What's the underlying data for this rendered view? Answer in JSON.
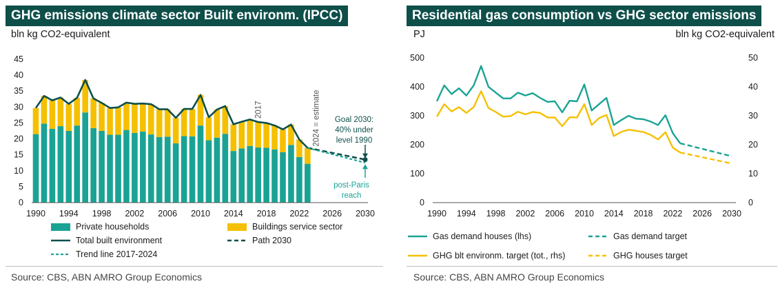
{
  "colors": {
    "teal": "#1aa394",
    "yellow": "#f5c000",
    "dark": "#0e4f4a",
    "title_bg": "#0e4f4a"
  },
  "left": {
    "title": "GHG emissions climate sector Built environm. (IPCC)",
    "unit": "bln kg CO2-equivalent",
    "source": "Source: CBS, ABN AMRO Group Economics",
    "annotations": {
      "year2017": "2017",
      "estimate": "2024 = estimate",
      "goal": [
        "Goal 2030:",
        "40% under",
        "level 1990"
      ],
      "paris": [
        "post-Paris",
        "reach"
      ]
    }
  },
  "right": {
    "title": "Residential gas consumption vs GHG sector emissions",
    "unit_left": "PJ",
    "unit_right": "bln kg CO2-equivalent",
    "source": "Source: CBS, ABN AMRO Group Economics"
  },
  "chart_data": [
    {
      "type": "bar",
      "title": "GHG emissions climate sector Built environm. (IPCC)",
      "ylabel": "bln kg CO2-equivalent",
      "xlim": [
        1990,
        2030
      ],
      "ylim": [
        0,
        45
      ],
      "yticks": [
        0,
        5,
        10,
        15,
        20,
        25,
        30,
        35,
        40,
        45
      ],
      "xticks": [
        1990,
        1994,
        1998,
        2002,
        2006,
        2010,
        2014,
        2018,
        2022,
        2026,
        2030
      ],
      "grid": false,
      "legend_position": "bottom",
      "categories": [
        1990,
        1991,
        1992,
        1993,
        1994,
        1995,
        1996,
        1997,
        1998,
        1999,
        2000,
        2001,
        2002,
        2003,
        2004,
        2005,
        2006,
        2007,
        2008,
        2009,
        2010,
        2011,
        2012,
        2013,
        2014,
        2015,
        2016,
        2017,
        2018,
        2019,
        2020,
        2021,
        2022,
        2023
      ],
      "series": [
        {
          "name": "Private households",
          "kind": "stacked-bar",
          "color": "#1aa394",
          "values": [
            21.5,
            24.8,
            23.2,
            24.0,
            22.5,
            24.2,
            28.3,
            23.4,
            22.5,
            21.3,
            21.3,
            22.8,
            21.9,
            22.3,
            21.4,
            20.6,
            20.7,
            18.6,
            20.9,
            20.8,
            24.2,
            19.6,
            20.4,
            21.6,
            16.2,
            17.0,
            17.8,
            17.3,
            17.2,
            16.7,
            15.8,
            18.1,
            14.3,
            12.2
          ]
        },
        {
          "name": "Buildings service sector",
          "kind": "stacked-bar",
          "color": "#f5c000",
          "values": [
            8.2,
            8.7,
            8.9,
            9.0,
            8.5,
            8.7,
            10.2,
            9.3,
            8.8,
            8.4,
            8.6,
            8.6,
            9.1,
            8.8,
            9.5,
            8.7,
            8.6,
            8.0,
            8.5,
            8.6,
            9.6,
            7.2,
            8.8,
            8.7,
            8.4,
            8.4,
            8.3,
            8.0,
            7.8,
            7.5,
            7.2,
            6.4,
            5.5,
            5.0
          ]
        },
        {
          "name": "Total built environment",
          "kind": "line",
          "color": "#0e4f4a",
          "x": [
            1990,
            1991,
            1992,
            1993,
            1994,
            1995,
            1996,
            1997,
            1998,
            1999,
            2000,
            2001,
            2002,
            2003,
            2004,
            2005,
            2006,
            2007,
            2008,
            2009,
            2010,
            2011,
            2012,
            2013,
            2014,
            2015,
            2016,
            2017,
            2018,
            2019,
            2020,
            2021,
            2022,
            2023
          ],
          "values": [
            29.7,
            33.5,
            32.1,
            33.0,
            31.0,
            32.9,
            38.5,
            32.7,
            31.3,
            29.7,
            29.9,
            31.4,
            31.0,
            31.1,
            30.9,
            29.3,
            29.3,
            26.6,
            29.4,
            29.4,
            33.8,
            26.8,
            29.2,
            30.3,
            24.6,
            25.4,
            26.1,
            25.3,
            25.0,
            24.2,
            23.0,
            24.5,
            19.8,
            17.2
          ]
        },
        {
          "name": "Path 2030",
          "kind": "dashed-line",
          "color": "#0e4f4a",
          "x": [
            2023,
            2030
          ],
          "values": [
            17.2,
            13.5
          ]
        },
        {
          "name": "Trend line 2017-2024",
          "kind": "dashed-line",
          "color": "#1aa394",
          "x": [
            2023,
            2030
          ],
          "values": [
            17.2,
            12.5
          ]
        }
      ]
    },
    {
      "type": "line",
      "title": "Residential gas consumption vs GHG sector emissions",
      "ylabel": "PJ",
      "ylabel_right": "bln kg CO2-equivalent",
      "xlim": [
        1990,
        2030
      ],
      "ylim": [
        0,
        500
      ],
      "ylim_right": [
        0,
        50
      ],
      "yticks": [
        0,
        100,
        200,
        300,
        400,
        500
      ],
      "yticks_right": [
        0,
        10,
        20,
        30,
        40,
        50
      ],
      "xticks": [
        1990,
        1994,
        1998,
        2002,
        2006,
        2010,
        2014,
        2018,
        2022,
        2026,
        2030
      ],
      "grid": false,
      "legend_position": "bottom",
      "series": [
        {
          "name": "Gas demand houses (lhs)",
          "axis": "left",
          "kind": "line",
          "color": "#1aa394",
          "x": [
            1990,
            1991,
            1992,
            1993,
            1994,
            1995,
            1996,
            1997,
            1998,
            1999,
            2000,
            2001,
            2002,
            2003,
            2004,
            2005,
            2006,
            2007,
            2008,
            2009,
            2010,
            2011,
            2012,
            2013,
            2014,
            2015,
            2016,
            2017,
            2018,
            2019,
            2020,
            2021,
            2022,
            2023
          ],
          "values": [
            350,
            405,
            375,
            395,
            370,
            405,
            472,
            400,
            380,
            360,
            360,
            380,
            370,
            378,
            362,
            348,
            350,
            312,
            352,
            350,
            408,
            318,
            340,
            362,
            268,
            285,
            300,
            290,
            288,
            280,
            268,
            302,
            240,
            205
          ]
        },
        {
          "name": "Gas demand target",
          "axis": "left",
          "kind": "dashed-line",
          "color": "#1aa394",
          "x": [
            2023,
            2030
          ],
          "values": [
            205,
            160
          ]
        },
        {
          "name": "GHG blt environm. target (tot., rhs)",
          "axis": "right",
          "kind": "line",
          "color": "#f5c000",
          "x": [
            1990,
            1991,
            1992,
            1993,
            1994,
            1995,
            1996,
            1997,
            1998,
            1999,
            2000,
            2001,
            2002,
            2003,
            2004,
            2005,
            2006,
            2007,
            2008,
            2009,
            2010,
            2011,
            2012,
            2013,
            2014,
            2015,
            2016,
            2017,
            2018,
            2019,
            2020,
            2021,
            2022,
            2023
          ],
          "values": [
            29.7,
            34.0,
            31.5,
            33.0,
            31.0,
            33.0,
            38.5,
            32.7,
            31.3,
            29.7,
            29.9,
            31.4,
            30.5,
            31.3,
            31.0,
            29.4,
            29.4,
            26.4,
            29.5,
            29.4,
            34.0,
            26.8,
            29.2,
            30.3,
            23.0,
            24.4,
            25.2,
            24.8,
            24.4,
            23.4,
            21.8,
            24.3,
            19.0,
            17.3
          ]
        },
        {
          "name": "GHG houses target",
          "axis": "right",
          "kind": "dashed-line",
          "color": "#f5c000",
          "x": [
            2023,
            2030
          ],
          "values": [
            17.3,
            13.5
          ]
        }
      ]
    }
  ]
}
